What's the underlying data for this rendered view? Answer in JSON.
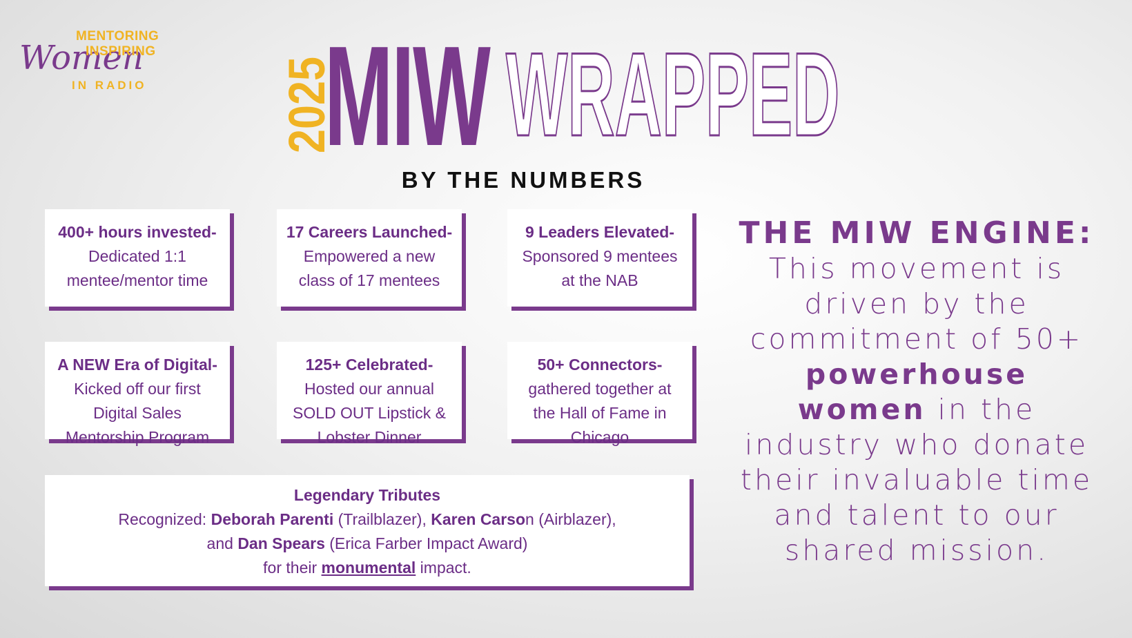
{
  "logo": {
    "line1": "MENTORING",
    "line2": "INSPIRING",
    "script": "Women",
    "line3": "IN RADIO"
  },
  "title": {
    "year": "2025",
    "brand": "MIW",
    "word": "WRAPPED",
    "subtitle": "BY THE NUMBERS"
  },
  "cards": [
    {
      "title": "400+ hours invested-",
      "text": "Dedicated 1:1 mentee/mentor time"
    },
    {
      "title": "17 Careers Launched-",
      "text": "Empowered a new class of 17 mentees"
    },
    {
      "title": "9 Leaders Elevated-",
      "text": "Sponsored 9 mentees at the NAB"
    },
    {
      "title": "A NEW Era of Digital-",
      "text": "Kicked off our first Digital Sales Mentorship Program"
    },
    {
      "title": "125+ Celebrated-",
      "text": "Hosted our annual SOLD OUT Lipstick & Lobster Dinner"
    },
    {
      "title": "50+ Connectors-",
      "text": "gathered together at the Hall of Fame in Chicago"
    }
  ],
  "tribute": {
    "title": "Legendary Tributes",
    "lines": [
      [
        {
          "text": "Recognized: ",
          "style": "normal"
        },
        {
          "text": "Deborah Parenti",
          "style": "bold"
        },
        {
          "text": " (Trailblazer), ",
          "style": "normal"
        },
        {
          "text": "Karen Carso",
          "style": "bold"
        },
        {
          "text": "n (Airblazer),",
          "style": "normal"
        }
      ],
      [
        {
          "text": "and ",
          "style": "normal"
        },
        {
          "text": "Dan Spears",
          "style": "bold"
        },
        {
          "text": " (Erica Farber Impact Award)",
          "style": "normal"
        }
      ],
      [
        {
          "text": "for their ",
          "style": "normal"
        },
        {
          "text": "monumental",
          "style": "bold-underline"
        },
        {
          "text": " impact.",
          "style": "normal"
        }
      ]
    ]
  },
  "engine": {
    "heading": "THE MIW ENGINE:",
    "body": [
      {
        "text": "This movement is driven by the commitment of 50+ ",
        "style": "normal"
      },
      {
        "text": "powerhouse women",
        "style": "bold"
      },
      {
        "text": " in the industry who donate their invaluable time and talent to our shared mission.",
        "style": "normal"
      }
    ]
  }
}
